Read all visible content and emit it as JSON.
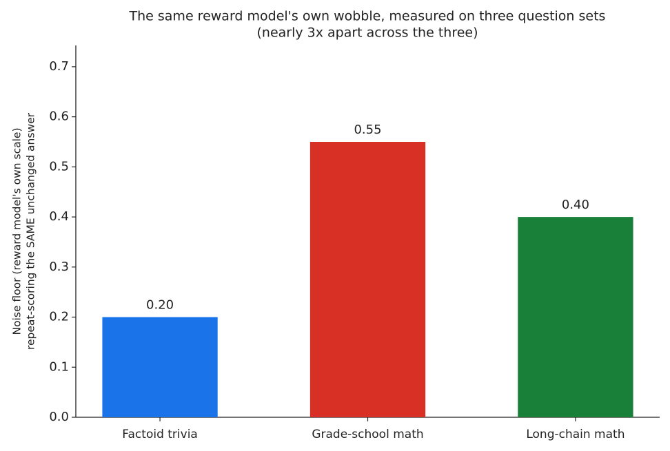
{
  "chart_data": {
    "type": "bar",
    "title": [
      "The same reward model's own wobble, measured on three question sets",
      "(nearly 3x apart across the three)"
    ],
    "ylabel": [
      "Noise floor (reward model's own scale)",
      "repeat-scoring the SAME unchanged answer"
    ],
    "categories": [
      "Factoid trivia",
      "Grade-school math",
      "Long-chain math"
    ],
    "values": [
      0.2,
      0.55,
      0.4
    ],
    "value_labels": [
      "0.20",
      "0.55",
      "0.40"
    ],
    "colors": [
      "#1a73e8",
      "#d93025",
      "#188038"
    ],
    "ylim": [
      0,
      0.7425
    ],
    "yticks": [
      {
        "value": 0,
        "label": "0.0"
      },
      0.1,
      0.2,
      0.3,
      0.4,
      0.5,
      0.6,
      0.7
    ],
    "grid": false
  }
}
